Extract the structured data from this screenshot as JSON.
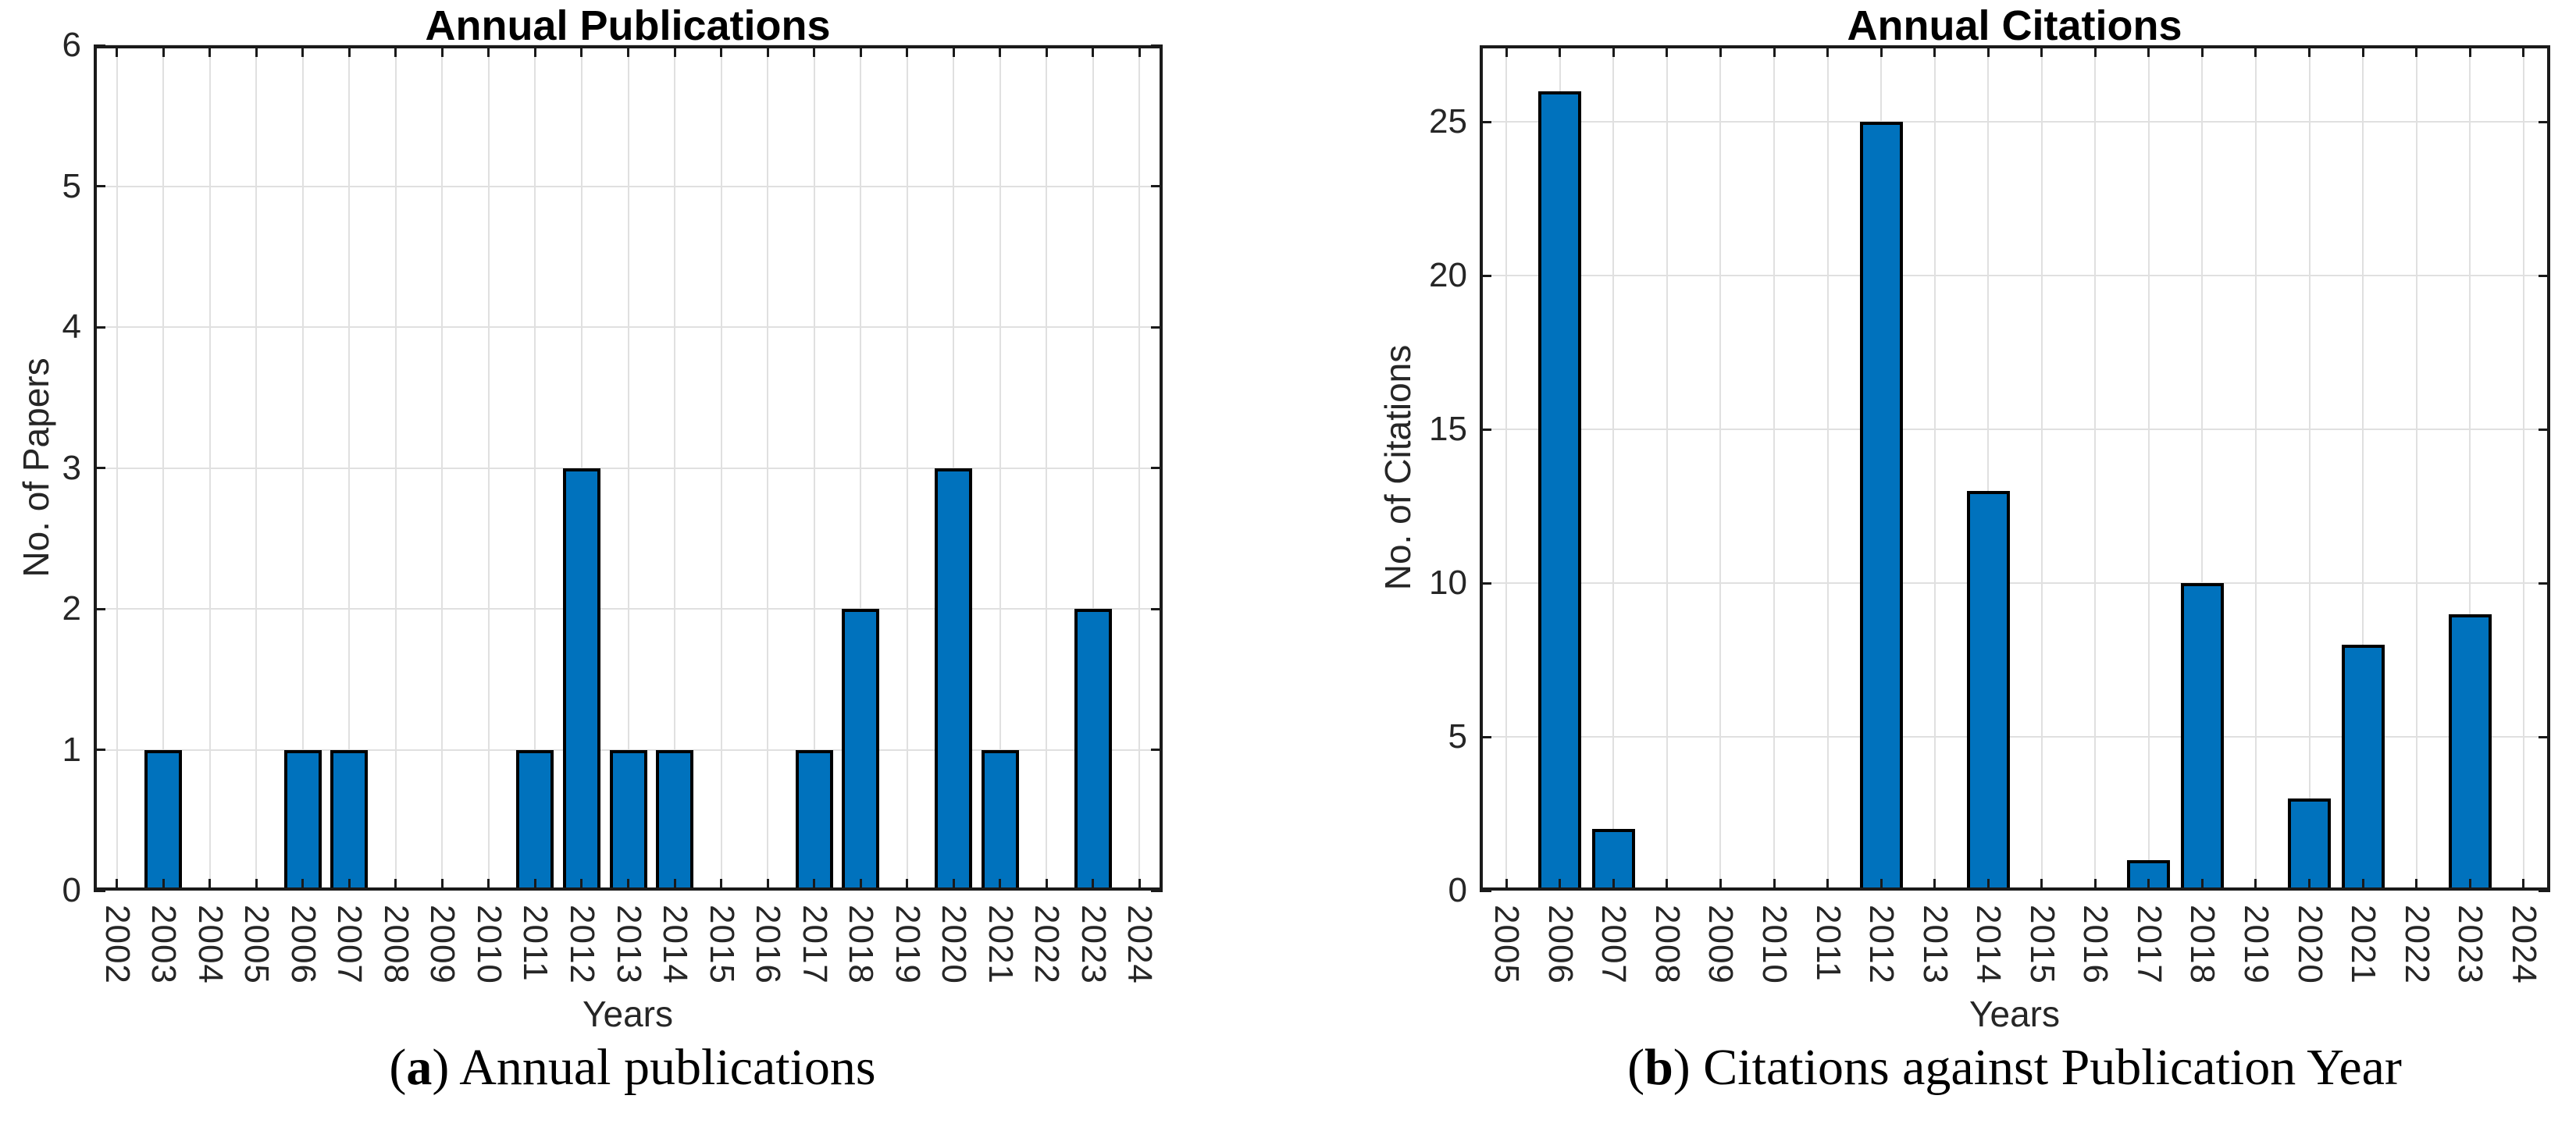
{
  "style": {
    "bar_fill": "#0072BD",
    "bar_edge": "#000000",
    "axis_color": "#1a1a1a",
    "grid_color": "#e0e0e0",
    "tick_text_color": "#262626"
  },
  "captions": [
    {
      "pre": "(",
      "letter": "a",
      "post": ") ",
      "text": "Annual publications"
    },
    {
      "pre": "(",
      "letter": "b",
      "post": ") ",
      "text": "Citations against Publication Year"
    }
  ],
  "chart_data": [
    {
      "type": "bar",
      "title": "Annual Publications",
      "xlabel": "Years",
      "ylabel": "No. of Papers",
      "categories": [
        "2002",
        "2003",
        "2004",
        "2005",
        "2006",
        "2007",
        "2008",
        "2009",
        "2010",
        "2011",
        "2012",
        "2013",
        "2014",
        "2015",
        "2016",
        "2017",
        "2018",
        "2019",
        "2020",
        "2021",
        "2022",
        "2023",
        "2024"
      ],
      "values": [
        0,
        1,
        0,
        0,
        1,
        1,
        0,
        0,
        0,
        1,
        3,
        1,
        1,
        0,
        0,
        1,
        2,
        0,
        3,
        1,
        0,
        2,
        0
      ],
      "ylim": [
        0,
        6
      ],
      "yticks": [
        0,
        1,
        2,
        3,
        4,
        5,
        6
      ],
      "grid": true,
      "legend": "none"
    },
    {
      "type": "bar",
      "title": "Annual Citations",
      "xlabel": "Years",
      "ylabel": "No. of Citations",
      "categories": [
        "2005",
        "2006",
        "2007",
        "2008",
        "2009",
        "2010",
        "2011",
        "2012",
        "2013",
        "2014",
        "2015",
        "2016",
        "2017",
        "2018",
        "2019",
        "2020",
        "2021",
        "2022",
        "2023",
        "2024"
      ],
      "values": [
        0,
        26,
        2,
        0,
        0,
        0,
        0,
        25,
        0,
        13,
        0,
        0,
        1,
        10,
        0,
        3,
        8,
        0,
        9,
        0
      ],
      "ylim": [
        0,
        27.5
      ],
      "yticks": [
        0,
        5,
        10,
        15,
        20,
        25
      ],
      "grid": true,
      "legend": "none"
    }
  ]
}
